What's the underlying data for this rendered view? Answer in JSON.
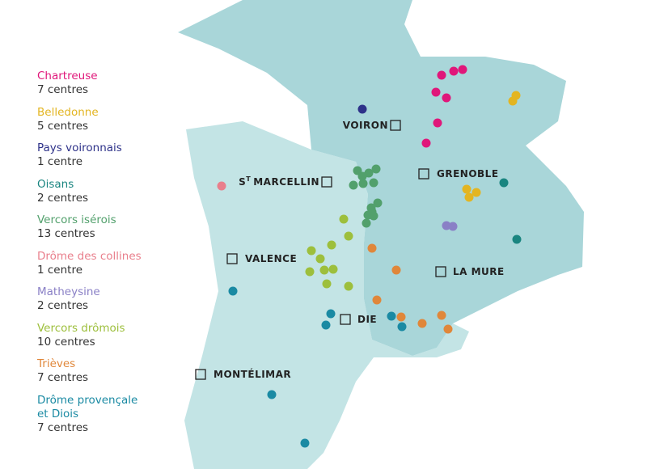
{
  "legend": [
    {
      "name": "Chartreuse",
      "count": "7 centres",
      "color": "#e0177a"
    },
    {
      "name": "Belledonne",
      "count": "5 centres",
      "color": "#e3b521"
    },
    {
      "name": "Pays voironnais",
      "count": "1 centre",
      "color": "#2e3289"
    },
    {
      "name": "Oisans",
      "count": "2 centres",
      "color": "#1a8580"
    },
    {
      "name": "Vercors isérois",
      "count": "13 centres",
      "color": "#52a06c"
    },
    {
      "name": "Drôme des collines",
      "count": "1 centre",
      "color": "#e97f8c"
    },
    {
      "name": "Matheysine",
      "count": "2 centres",
      "color": "#8a80c6"
    },
    {
      "name": "Vercors drômois",
      "count": "10 centres",
      "color": "#9dbf3c"
    },
    {
      "name": "Trièves",
      "count": "7 centres",
      "color": "#e0873a"
    },
    {
      "name": "Drôme provençale et Diois",
      "count": "7 centres",
      "color": "#1a8aa3"
    }
  ],
  "cities": [
    {
      "label": "VOIRON"
    },
    {
      "label": "GRENOBLE"
    },
    {
      "label_parts": [
        "S",
        "T",
        "MARCELLIN"
      ]
    },
    {
      "label": "VALENCE"
    },
    {
      "label": "LA MURE"
    },
    {
      "label": "DIE"
    },
    {
      "label": "MONTÉLIMAR"
    }
  ]
}
